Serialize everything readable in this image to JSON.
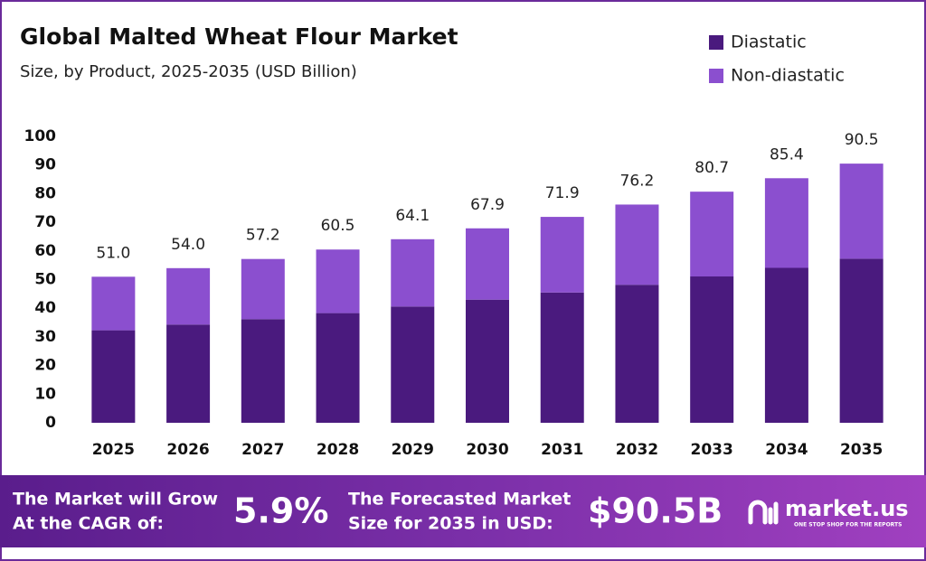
{
  "chart_data": {
    "type": "stacked_bar",
    "title": "Global Malted Wheat Flour Market",
    "subtitle": "Size, by Product, 2025-2035 (USD Billion)",
    "categories": [
      "2025",
      "2026",
      "2027",
      "2028",
      "2029",
      "2030",
      "2031",
      "2032",
      "2033",
      "2034",
      "2035"
    ],
    "series": [
      {
        "name": "Diastatic",
        "color": "#4a1a7e",
        "values": [
          32.3,
          34.3,
          36.2,
          38.3,
          40.6,
          43.0,
          45.5,
          48.2,
          51.1,
          54.1,
          57.3
        ]
      },
      {
        "name": "Non-diastatic",
        "color": "#8b4fcf",
        "values": [
          18.7,
          19.7,
          21.0,
          22.2,
          23.5,
          24.9,
          26.4,
          28.0,
          29.6,
          31.3,
          33.2
        ]
      }
    ],
    "totals": {
      "values": [
        51,
        54,
        57.2,
        60.5,
        64.1,
        67.9,
        71.9,
        76.2,
        80.7,
        85.4,
        90.5
      ],
      "value_labels": [
        "51.0",
        "54.0",
        "57.2",
        "60.5",
        "64.1",
        "67.9",
        "71.9",
        "76.2",
        "80.7",
        "85.4",
        "90.5"
      ]
    },
    "ylim": [
      0,
      100
    ],
    "yticks": [
      0,
      10,
      20,
      30,
      40,
      50,
      60,
      70,
      80,
      90,
      100
    ],
    "grid": false,
    "legend": "top-right"
  },
  "footer": {
    "cagr_text": [
      "The Market will Grow",
      "At the CAGR of:"
    ],
    "cagr": "5.9%",
    "forecast_text": [
      "The Forecasted Market",
      "Size for 2035 in USD:"
    ],
    "forecast": "$90.5B",
    "brand": "market.us",
    "tagline": "ONE STOP SHOP FOR THE REPORTS"
  }
}
